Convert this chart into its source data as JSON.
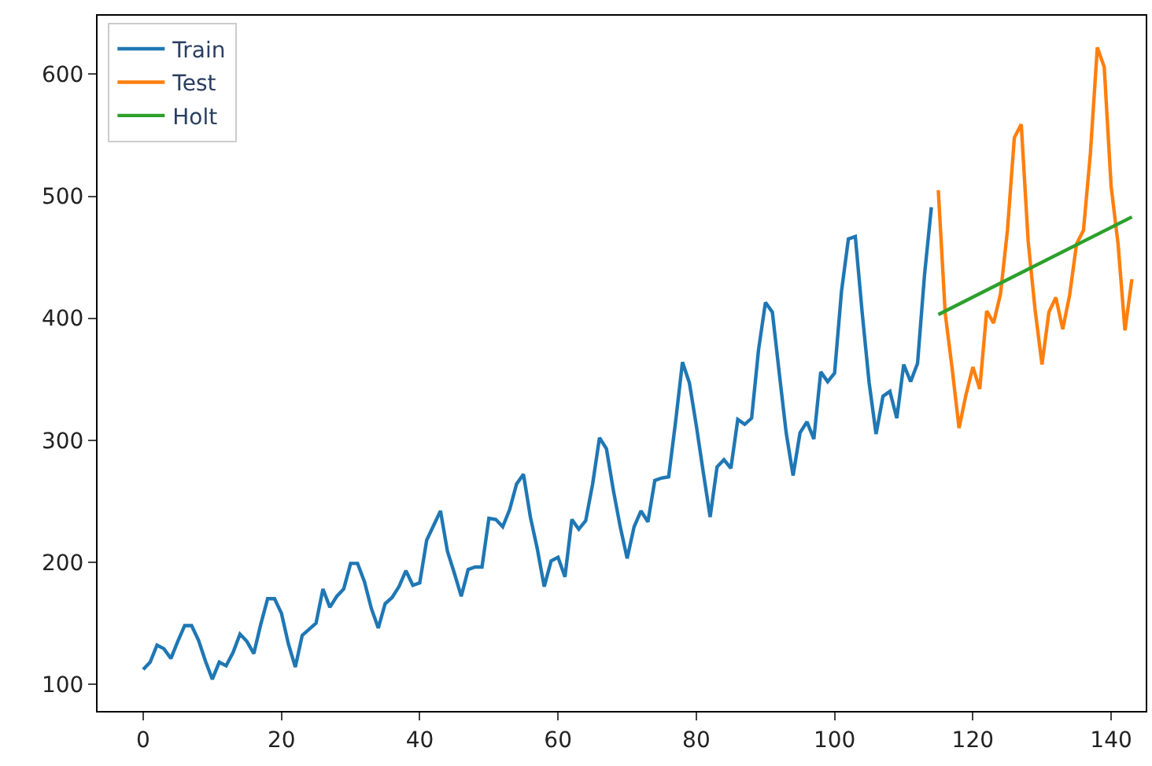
{
  "chart_data": {
    "type": "line",
    "series": [
      {
        "name": "Train",
        "color": "#1f77b4",
        "x": [
          0,
          1,
          2,
          3,
          4,
          5,
          6,
          7,
          8,
          9,
          10,
          11,
          12,
          13,
          14,
          15,
          16,
          17,
          18,
          19,
          20,
          21,
          22,
          23,
          24,
          25,
          26,
          27,
          28,
          29,
          30,
          31,
          32,
          33,
          34,
          35,
          36,
          37,
          38,
          39,
          40,
          41,
          42,
          43,
          44,
          45,
          46,
          47,
          48,
          49,
          50,
          51,
          52,
          53,
          54,
          55,
          56,
          57,
          58,
          59,
          60,
          61,
          62,
          63,
          64,
          65,
          66,
          67,
          68,
          69,
          70,
          71,
          72,
          73,
          74,
          75,
          76,
          77,
          78,
          79,
          80,
          81,
          82,
          83,
          84,
          85,
          86,
          87,
          88,
          89,
          90,
          91,
          92,
          93,
          94,
          95,
          96,
          97,
          98,
          99,
          100,
          101,
          102,
          103,
          104,
          105,
          106,
          107,
          108,
          109,
          110,
          111,
          112,
          113,
          114
        ],
        "values": [
          112,
          118,
          132,
          129,
          121,
          135,
          148,
          148,
          136,
          119,
          104,
          118,
          115,
          126,
          141,
          135,
          125,
          149,
          170,
          170,
          158,
          133,
          114,
          140,
          145,
          150,
          178,
          163,
          172,
          178,
          199,
          199,
          184,
          162,
          146,
          166,
          171,
          180,
          193,
          181,
          183,
          218,
          230,
          242,
          209,
          191,
          172,
          194,
          196,
          196,
          236,
          235,
          229,
          243,
          264,
          272,
          237,
          211,
          180,
          201,
          204,
          188,
          235,
          227,
          234,
          264,
          302,
          293,
          259,
          229,
          203,
          229,
          242,
          233,
          267,
          269,
          270,
          315,
          364,
          347,
          312,
          274,
          237,
          278,
          284,
          277,
          317,
          313,
          318,
          374,
          413,
          405,
          355,
          306,
          271,
          306,
          315,
          301,
          356,
          348,
          355,
          422,
          465,
          467,
          404,
          347,
          305,
          336,
          340,
          318,
          362,
          348,
          363,
          435,
          491
        ]
      },
      {
        "name": "Test",
        "color": "#ff7f0e",
        "x": [
          115,
          116,
          117,
          118,
          119,
          120,
          121,
          122,
          123,
          124,
          125,
          126,
          127,
          128,
          129,
          130,
          131,
          132,
          133,
          134,
          135,
          136,
          137,
          138,
          139,
          140,
          141,
          142,
          143
        ],
        "values": [
          505,
          404,
          359,
          310,
          337,
          360,
          342,
          406,
          396,
          420,
          472,
          548,
          559,
          463,
          407,
          362,
          405,
          417,
          391,
          419,
          461,
          472,
          535,
          622,
          606,
          508,
          461,
          390,
          432
        ]
      },
      {
        "name": "Holt",
        "color": "#2ca02c",
        "x": [
          115,
          143
        ],
        "values": [
          403,
          483
        ]
      }
    ],
    "xlim": [
      -6.6,
      145
    ],
    "ylim": [
      78,
      648
    ],
    "xticks": [
      0,
      20,
      40,
      60,
      80,
      100,
      120,
      140
    ],
    "yticks": [
      100,
      200,
      300,
      400,
      500,
      600
    ],
    "legend": "top left",
    "marker": "none",
    "line_style": "solid"
  }
}
